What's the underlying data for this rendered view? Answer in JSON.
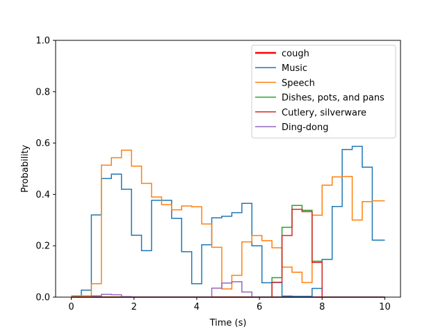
{
  "chart_data": {
    "type": "line",
    "step": "post",
    "xlabel": "Time (s)",
    "ylabel": "Probability",
    "xlim": [
      -0.5,
      10.5
    ],
    "ylim": [
      0,
      1.0
    ],
    "xticks": [
      0,
      2,
      4,
      6,
      8,
      10
    ],
    "xtick_labels": [
      "0",
      "2",
      "4",
      "6",
      "8",
      "10"
    ],
    "yticks": [
      0,
      0.2,
      0.4,
      0.6,
      0.8,
      1.0
    ],
    "ytick_labels": [
      "0.0",
      "0.2",
      "0.4",
      "0.6",
      "0.8",
      "1.0"
    ],
    "legend_position": "top-right",
    "x": [
      0,
      0.32,
      0.64,
      0.96,
      1.28,
      1.6,
      1.92,
      2.24,
      2.56,
      2.88,
      3.2,
      3.52,
      3.84,
      4.16,
      4.48,
      4.8,
      5.12,
      5.44,
      5.76,
      6.08,
      6.4,
      6.72,
      7.04,
      7.36,
      7.68,
      8.0,
      8.32,
      8.64,
      8.96,
      9.28,
      9.6,
      10.0
    ],
    "series": [
      {
        "name": "cough",
        "color": "#ff0000",
        "values": [
          0,
          0,
          0,
          0,
          0,
          0,
          0,
          0,
          0,
          0,
          0,
          0,
          0,
          0,
          0,
          0,
          0,
          0,
          0,
          0,
          0,
          0,
          0,
          0,
          0,
          0,
          0,
          0,
          0,
          0,
          0,
          0
        ]
      },
      {
        "name": "Music",
        "color": "#1f77b4",
        "values": [
          0.003,
          0.027,
          0.32,
          0.462,
          0.479,
          0.42,
          0.241,
          0.181,
          0.377,
          0.377,
          0.307,
          0.177,
          0.052,
          0.204,
          0.309,
          0.315,
          0.329,
          0.365,
          0.2,
          0.056,
          0.057,
          0.004,
          0.003,
          0.003,
          0.034,
          0.147,
          0.353,
          0.575,
          0.587,
          0.506,
          0.222,
          0.222
        ]
      },
      {
        "name": "Speech",
        "color": "#ff7f0e",
        "values": [
          0.005,
          0.005,
          0.052,
          0.514,
          0.543,
          0.572,
          0.51,
          0.443,
          0.39,
          0.36,
          0.34,
          0.355,
          0.352,
          0.285,
          0.194,
          0.032,
          0.085,
          0.215,
          0.24,
          0.22,
          0.192,
          0.117,
          0.097,
          0.057,
          0.319,
          0.436,
          0.468,
          0.47,
          0.3,
          0.372,
          0.375,
          0.375
        ]
      },
      {
        "name": "Dishes, pots, and pans",
        "color": "#2ca02c",
        "values": [
          0,
          0,
          0,
          0,
          0,
          0,
          0,
          0,
          0,
          0,
          0,
          0,
          0,
          0,
          0,
          0,
          0,
          0,
          0,
          0,
          0.076,
          0.272,
          0.357,
          0.338,
          0.14,
          0,
          0,
          0,
          0,
          0,
          0,
          0
        ]
      },
      {
        "name": "Cutlery, silverware",
        "color": "#d62728",
        "values": [
          0,
          0,
          0,
          0,
          0,
          0,
          0,
          0,
          0,
          0,
          0,
          0,
          0,
          0,
          0,
          0,
          0,
          0,
          0,
          0,
          0.058,
          0.24,
          0.342,
          0.333,
          0.135,
          0,
          0,
          0,
          0,
          0,
          0,
          0
        ]
      },
      {
        "name": "Ding-dong",
        "color": "#9467bd",
        "values": [
          0,
          0,
          0.005,
          0.011,
          0.009,
          0.002,
          0,
          0,
          0,
          0,
          0,
          0,
          0,
          0,
          0.035,
          0.055,
          0.06,
          0.02,
          0,
          0,
          0,
          0,
          0,
          0,
          0,
          0,
          0,
          0,
          0,
          0,
          0,
          0
        ]
      }
    ]
  }
}
